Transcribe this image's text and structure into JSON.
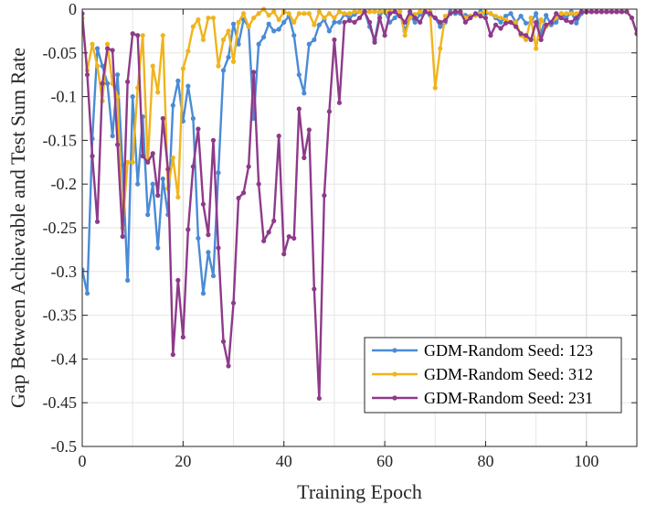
{
  "chart_data": {
    "type": "line",
    "xlabel": "Training Epoch",
    "ylabel": "Gap Between Achievable and Test Sum Rate",
    "xlim": [
      0,
      110
    ],
    "ylim": [
      -0.5,
      0
    ],
    "xticks": [
      0,
      20,
      40,
      60,
      80,
      100
    ],
    "xtick_labels": [
      "0",
      "20",
      "40",
      "60",
      "80",
      "100"
    ],
    "yticks": [
      -0.5,
      -0.45,
      -0.4,
      -0.35,
      -0.3,
      -0.25,
      -0.2,
      -0.15,
      -0.1,
      -0.05,
      0
    ],
    "ytick_labels": [
      "-0.5",
      "-0.45",
      "-0.4",
      "-0.35",
      "-0.3",
      "-0.25",
      "-0.2",
      "-0.15",
      "-0.1",
      "-0.05",
      "0"
    ],
    "grid": true,
    "legend_position": "bottom-right",
    "series": [
      {
        "name": "GDM-Random Seed: 123",
        "color": "#4a8bd6",
        "x": [
          0,
          1,
          2,
          3,
          4,
          5,
          6,
          7,
          8,
          9,
          10,
          11,
          12,
          13,
          14,
          15,
          16,
          17,
          18,
          19,
          20,
          21,
          22,
          23,
          24,
          25,
          26,
          27,
          28,
          29,
          30,
          31,
          32,
          33,
          34,
          35,
          36,
          37,
          38,
          39,
          40,
          41,
          42,
          43,
          44,
          45,
          46,
          47,
          48,
          49,
          50,
          51,
          52,
          53,
          54,
          55,
          56,
          57,
          58,
          59,
          60,
          61,
          62,
          63,
          64,
          65,
          66,
          67,
          68,
          69,
          70,
          71,
          72,
          73,
          74,
          75,
          76,
          77,
          78,
          79,
          80,
          81,
          82,
          83,
          84,
          85,
          86,
          87,
          88,
          89,
          90,
          91,
          92,
          93,
          94,
          95,
          96,
          97,
          98,
          99,
          100,
          101,
          102,
          103,
          104,
          105,
          106,
          107,
          108,
          109,
          110
        ],
        "y": [
          -0.298,
          -0.325,
          -0.148,
          -0.045,
          -0.065,
          -0.085,
          -0.145,
          -0.075,
          -0.178,
          -0.31,
          -0.1,
          -0.2,
          -0.123,
          -0.235,
          -0.2,
          -0.273,
          -0.194,
          -0.235,
          -0.11,
          -0.082,
          -0.128,
          -0.088,
          -0.125,
          -0.262,
          -0.325,
          -0.278,
          -0.305,
          -0.187,
          -0.07,
          -0.055,
          -0.017,
          -0.04,
          -0.012,
          -0.02,
          -0.125,
          -0.04,
          -0.032,
          -0.017,
          -0.025,
          -0.023,
          -0.015,
          -0.008,
          -0.03,
          -0.075,
          -0.096,
          -0.04,
          -0.035,
          -0.018,
          -0.012,
          -0.025,
          -0.015,
          -0.015,
          -0.006,
          -0.01,
          -0.006,
          -0.003,
          -0.003,
          -0.02,
          -0.035,
          -0.006,
          -0.003,
          -0.015,
          -0.01,
          -0.003,
          -0.025,
          -0.008,
          -0.015,
          -0.006,
          -0.003,
          -0.007,
          -0.01,
          -0.02,
          -0.015,
          -0.003,
          -0.005,
          -0.005,
          -0.007,
          -0.008,
          -0.007,
          -0.003,
          -0.005,
          -0.005,
          -0.01,
          -0.015,
          -0.008,
          -0.005,
          -0.015,
          -0.008,
          -0.016,
          -0.015,
          -0.005,
          -0.028,
          -0.007,
          -0.018,
          -0.015,
          -0.005,
          -0.01,
          -0.003,
          -0.016,
          -0.005,
          -0.003,
          -0.003,
          -0.003,
          -0.003,
          -0.003,
          -0.003,
          -0.003,
          -0.003,
          -0.003,
          -0.01,
          -0.028
        ]
      },
      {
        "name": "GDM-Random Seed: 312",
        "color": "#f0b41c",
        "x": [
          0,
          1,
          2,
          3,
          4,
          5,
          6,
          7,
          8,
          9,
          10,
          11,
          12,
          13,
          14,
          15,
          16,
          17,
          18,
          19,
          20,
          21,
          22,
          23,
          24,
          25,
          26,
          27,
          28,
          29,
          30,
          31,
          32,
          33,
          34,
          35,
          36,
          37,
          38,
          39,
          40,
          41,
          42,
          43,
          44,
          45,
          46,
          47,
          48,
          49,
          50,
          51,
          52,
          53,
          54,
          55,
          56,
          57,
          58,
          59,
          60,
          61,
          62,
          63,
          64,
          65,
          66,
          67,
          68,
          69,
          70,
          71,
          72,
          73,
          74,
          75,
          76,
          77,
          78,
          79,
          80,
          81,
          82,
          83,
          84,
          85,
          86,
          87,
          88,
          89,
          90,
          91,
          92,
          93,
          94,
          95,
          96,
          97,
          98,
          99,
          100,
          101,
          102,
          103,
          104,
          105,
          106,
          107,
          108,
          109,
          110
        ],
        "y": [
          -0.01,
          -0.07,
          -0.04,
          -0.065,
          -0.105,
          -0.04,
          -0.085,
          -0.1,
          -0.25,
          -0.175,
          -0.175,
          -0.09,
          -0.03,
          -0.175,
          -0.065,
          -0.095,
          -0.03,
          -0.205,
          -0.17,
          -0.215,
          -0.068,
          -0.048,
          -0.02,
          -0.012,
          -0.035,
          -0.01,
          -0.01,
          -0.065,
          -0.035,
          -0.025,
          -0.06,
          -0.015,
          -0.005,
          -0.02,
          -0.01,
          -0.005,
          0,
          -0.007,
          -0.003,
          -0.012,
          -0.003,
          -0.005,
          -0.015,
          -0.005,
          -0.005,
          -0.005,
          -0.018,
          -0.003,
          -0.01,
          -0.005,
          -0.01,
          -0.003,
          -0.005,
          -0.005,
          -0.003,
          -0.003,
          -0.003,
          -0.003,
          -0.003,
          -0.003,
          -0.003,
          -0.003,
          -0.003,
          -0.003,
          -0.03,
          -0.01,
          -0.006,
          -0.003,
          -0.003,
          -0.003,
          -0.09,
          -0.045,
          -0.008,
          -0.005,
          -0.003,
          -0.003,
          -0.01,
          -0.008,
          -0.007,
          -0.005,
          -0.003,
          -0.005,
          -0.008,
          -0.01,
          -0.012,
          -0.015,
          -0.015,
          -0.03,
          -0.035,
          -0.01,
          -0.045,
          -0.012,
          -0.02,
          -0.015,
          -0.01,
          -0.005,
          -0.005,
          -0.005,
          -0.005,
          -0.003,
          -0.003,
          -0.003,
          -0.003,
          -0.003,
          -0.003,
          -0.003,
          -0.003,
          -0.003,
          -0.003,
          -0.01,
          -0.028
        ]
      },
      {
        "name": "GDM-Random Seed: 231",
        "color": "#8e3a8a",
        "x": [
          0,
          1,
          2,
          3,
          4,
          5,
          6,
          7,
          8,
          9,
          10,
          11,
          12,
          13,
          14,
          15,
          16,
          17,
          18,
          19,
          20,
          21,
          22,
          23,
          24,
          25,
          26,
          27,
          28,
          29,
          30,
          31,
          32,
          33,
          34,
          35,
          36,
          37,
          38,
          39,
          40,
          41,
          42,
          43,
          44,
          45,
          46,
          47,
          48,
          49,
          50,
          51,
          52,
          53,
          54,
          55,
          56,
          57,
          58,
          59,
          60,
          61,
          62,
          63,
          64,
          65,
          66,
          67,
          68,
          69,
          70,
          71,
          72,
          73,
          74,
          75,
          76,
          77,
          78,
          79,
          80,
          81,
          82,
          83,
          84,
          85,
          86,
          87,
          88,
          89,
          90,
          91,
          92,
          93,
          94,
          95,
          96,
          97,
          98,
          99,
          100,
          101,
          102,
          103,
          104,
          105,
          106,
          107,
          108,
          109,
          110
        ],
        "y": [
          -0.005,
          -0.075,
          -0.168,
          -0.243,
          -0.085,
          -0.045,
          -0.047,
          -0.155,
          -0.26,
          -0.083,
          -0.028,
          -0.03,
          -0.168,
          -0.175,
          -0.165,
          -0.213,
          -0.125,
          -0.183,
          -0.395,
          -0.31,
          -0.375,
          -0.252,
          -0.18,
          -0.137,
          -0.223,
          -0.258,
          -0.15,
          -0.273,
          -0.38,
          -0.408,
          -0.336,
          -0.216,
          -0.21,
          -0.18,
          -0.072,
          -0.2,
          -0.265,
          -0.255,
          -0.242,
          -0.145,
          -0.28,
          -0.26,
          -0.262,
          -0.114,
          -0.17,
          -0.138,
          -0.32,
          -0.445,
          -0.213,
          -0.117,
          -0.035,
          -0.107,
          -0.015,
          -0.013,
          -0.015,
          -0.01,
          -0.003,
          -0.015,
          -0.038,
          -0.01,
          -0.03,
          -0.005,
          -0.003,
          -0.008,
          -0.015,
          -0.003,
          -0.01,
          -0.015,
          -0.003,
          -0.005,
          -0.01,
          -0.015,
          -0.013,
          -0.005,
          -0.003,
          -0.003,
          -0.015,
          -0.01,
          -0.005,
          -0.008,
          -0.01,
          -0.03,
          -0.018,
          -0.022,
          -0.016,
          -0.015,
          -0.02,
          -0.028,
          -0.03,
          -0.035,
          -0.015,
          -0.035,
          -0.018,
          -0.015,
          -0.005,
          -0.01,
          -0.013,
          -0.015,
          -0.01,
          -0.003,
          -0.003,
          -0.003,
          -0.003,
          -0.003,
          -0.003,
          -0.003,
          -0.003,
          -0.003,
          -0.003,
          -0.01,
          -0.028
        ]
      }
    ]
  }
}
